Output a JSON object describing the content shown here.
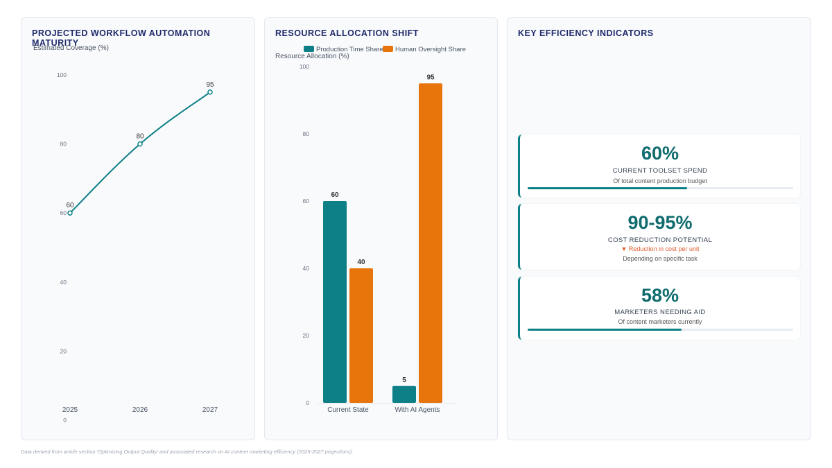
{
  "colors": {
    "teal": "#0d7f86",
    "orange": "#e8740c",
    "title": "#1f2a6b",
    "kpi_value": "#0f6b6e",
    "note": "#e05a2b"
  },
  "chart_data": [
    {
      "type": "line",
      "title": "PROJECTED WORKFLOW AUTOMATION MATURITY",
      "ylabel": "Estimated Coverage (%)",
      "xlabel": "",
      "x": [
        "2025",
        "2026",
        "2027"
      ],
      "series": [
        {
          "values": [
            60,
            80,
            95
          ]
        }
      ],
      "data_labels": [
        "60",
        "80",
        "95"
      ],
      "ylim": [
        0,
        100
      ],
      "yticks": [
        "0",
        "20",
        "40",
        "60",
        "80",
        "100"
      ],
      "grid": false,
      "legend": "none"
    },
    {
      "type": "bar",
      "title": "RESOURCE ALLOCATION SHIFT",
      "ylabel": "Resource Allocation (%)",
      "xlabel": "",
      "categories": [
        "Current State",
        "With AI Agents"
      ],
      "series": [
        {
          "name": "Production Time Share",
          "values": [
            60,
            5
          ]
        },
        {
          "name": "Human Oversight Share",
          "values": [
            40,
            95
          ]
        }
      ],
      "data_labels": [
        [
          "60",
          "5"
        ],
        [
          "40",
          "95"
        ]
      ],
      "ylim": [
        0,
        100
      ],
      "yticks": [
        "0",
        "20",
        "40",
        "60",
        "80",
        "100"
      ],
      "grid": false,
      "legend": "top"
    }
  ],
  "kpi": {
    "title": "KEY EFFICIENCY INDICATORS",
    "cards": [
      {
        "value": "60%",
        "label": "CURRENT TOOLSET SPEND",
        "sub": "Of total content production budget",
        "progress": 0.6
      },
      {
        "value": "90-95%",
        "label": "COST REDUCTION POTENTIAL",
        "note": "▼ Reduction in cost per unit",
        "sub": "Depending on specific task"
      },
      {
        "value": "58%",
        "label": "MARKETERS NEEDING AID",
        "sub": "Of content marketers currently",
        "progress": 0.58
      }
    ]
  },
  "footer": "Data derived from article section 'Optimizing Output Quality' and associated research on AI content marketing efficiency (2025-2027 projections)."
}
